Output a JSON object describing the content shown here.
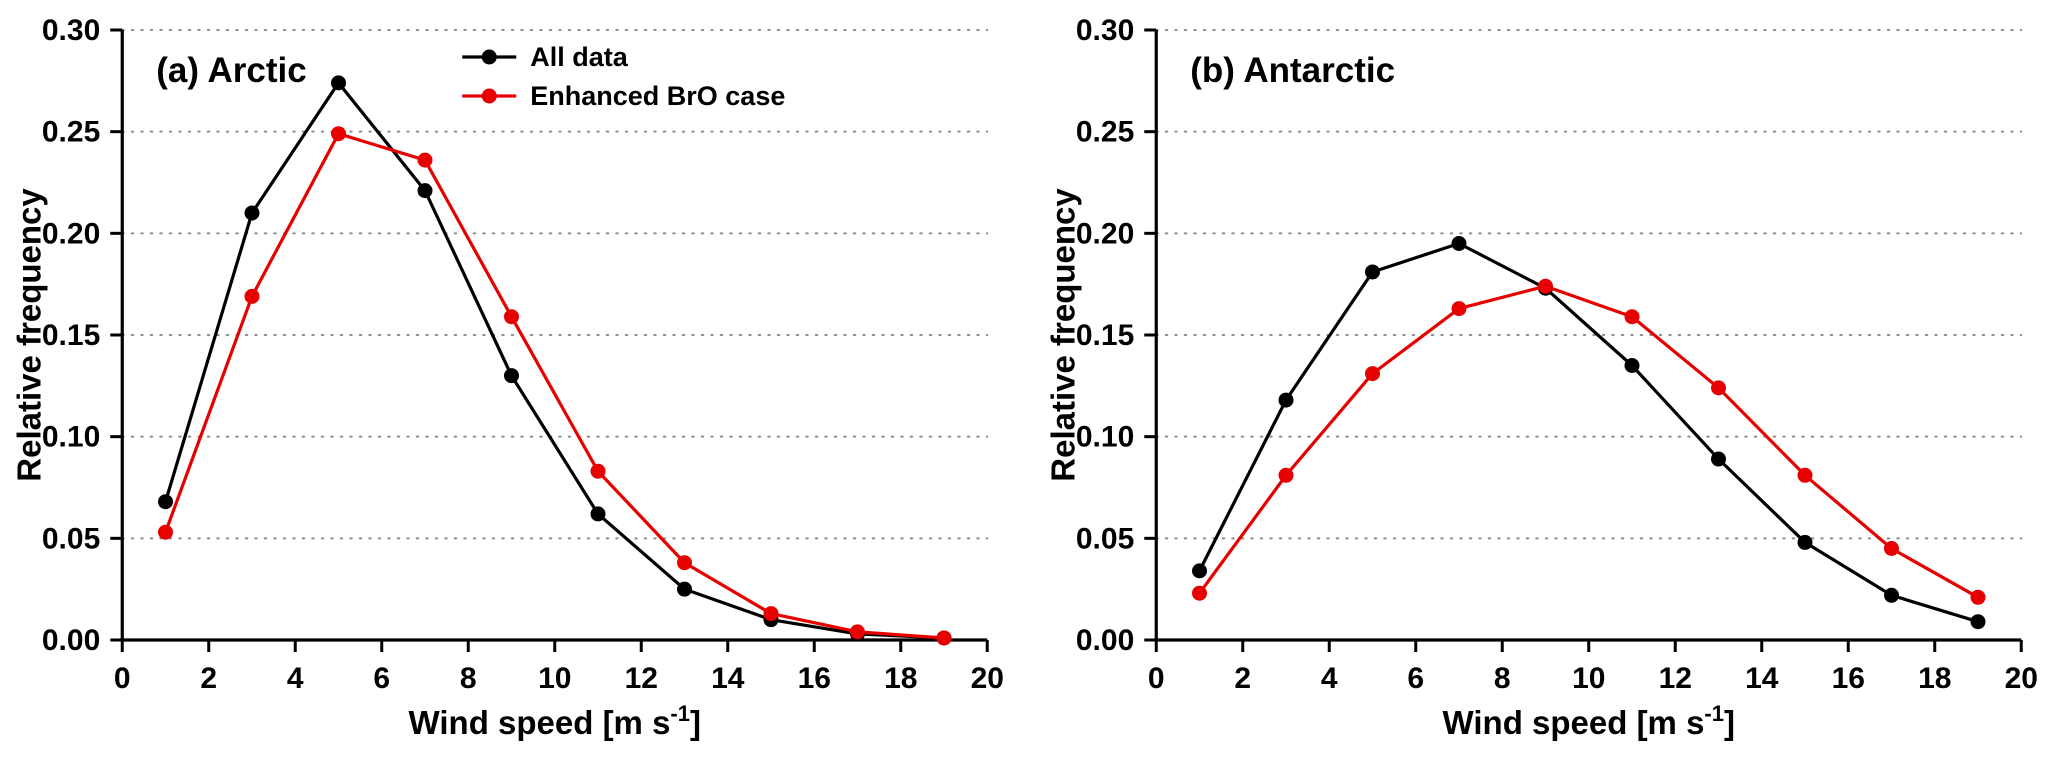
{
  "figure": {
    "background": "#ffffff",
    "axis_color": "#000000",
    "grid_color": "#8c8c8c"
  },
  "chart_data": [
    {
      "type": "line",
      "panel_label": "(a) Arctic",
      "xlabel": {
        "base": "Wind speed [m s",
        "sup": "-1",
        "close": "]"
      },
      "ylabel": "Relative frequency",
      "xlim": [
        0,
        20
      ],
      "ylim": [
        0,
        0.3
      ],
      "xticks": [
        0,
        2,
        4,
        6,
        8,
        10,
        12,
        14,
        16,
        18,
        20
      ],
      "xtick_labels": [
        "0",
        "2",
        "4",
        "6",
        "8",
        "10",
        "12",
        "14",
        "16",
        "18",
        "20"
      ],
      "yticks": [
        0,
        0.05,
        0.1,
        0.15,
        0.2,
        0.25,
        0.3
      ],
      "ytick_labels": [
        "0.00",
        "0.05",
        "0.10",
        "0.15",
        "0.20",
        "0.25",
        "0.30"
      ],
      "grid": "horizontal-dotted",
      "legend": {
        "show": true,
        "entries": [
          "All data",
          "Enhanced BrO case"
        ]
      },
      "x": [
        1,
        3,
        5,
        7,
        9,
        11,
        13,
        15,
        17,
        19
      ],
      "series": [
        {
          "name": "All data",
          "color": "#000000",
          "values": [
            0.068,
            0.21,
            0.274,
            0.221,
            0.13,
            0.062,
            0.025,
            0.01,
            0.003,
            0.001
          ]
        },
        {
          "name": "Enhanced BrO case",
          "color": "#e60000",
          "values": [
            0.053,
            0.169,
            0.249,
            0.236,
            0.159,
            0.083,
            0.038,
            0.013,
            0.004,
            0.001
          ]
        }
      ]
    },
    {
      "type": "line",
      "panel_label": "(b) Antarctic",
      "xlabel": {
        "base": "Wind speed [m s",
        "sup": "-1",
        "close": "]"
      },
      "ylabel": "Relative frequency",
      "xlim": [
        0,
        20
      ],
      "ylim": [
        0,
        0.3
      ],
      "xticks": [
        0,
        2,
        4,
        6,
        8,
        10,
        12,
        14,
        16,
        18,
        20
      ],
      "xtick_labels": [
        "0",
        "2",
        "4",
        "6",
        "8",
        "10",
        "12",
        "14",
        "16",
        "18",
        "20"
      ],
      "yticks": [
        0,
        0.05,
        0.1,
        0.15,
        0.2,
        0.25,
        0.3
      ],
      "ytick_labels": [
        "0.00",
        "0.05",
        "0.10",
        "0.15",
        "0.20",
        "0.25",
        "0.30"
      ],
      "grid": "horizontal-dotted",
      "legend": {
        "show": false,
        "entries": []
      },
      "x": [
        1,
        3,
        5,
        7,
        9,
        11,
        13,
        15,
        17,
        19
      ],
      "series": [
        {
          "name": "All data",
          "color": "#000000",
          "values": [
            0.034,
            0.118,
            0.181,
            0.195,
            0.173,
            0.135,
            0.089,
            0.048,
            0.022,
            0.009
          ]
        },
        {
          "name": "Enhanced BrO case",
          "color": "#e60000",
          "values": [
            0.023,
            0.081,
            0.131,
            0.163,
            0.174,
            0.159,
            0.124,
            0.081,
            0.045,
            0.021
          ]
        }
      ]
    }
  ]
}
